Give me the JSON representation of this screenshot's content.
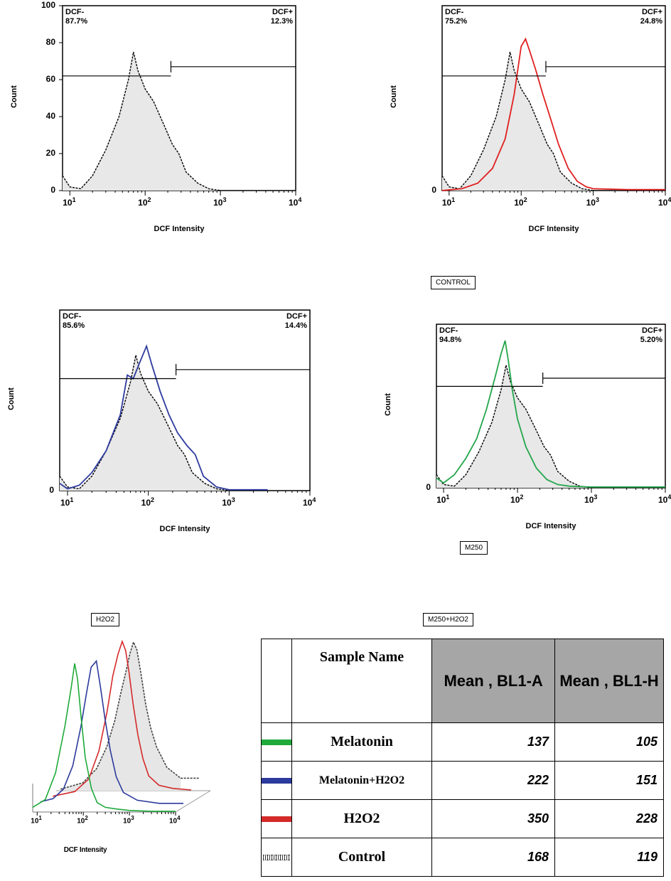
{
  "panels": [
    {
      "id": "control",
      "ylabel": "Count",
      "xlabel": "DCF Intensity",
      "ytick_labels": [
        "100",
        "80",
        "60",
        "40",
        "20",
        "0"
      ],
      "xtick_labels": [
        "10^1",
        "10^2",
        "10^3",
        "10^4"
      ],
      "gate_left_name": "DCF-",
      "gate_left_pct": "87.7%",
      "gate_right_name": "DCF+",
      "gate_right_pct": "12.3%",
      "caption": "CONTROL"
    },
    {
      "id": "h2o2",
      "ylabel": "Count",
      "xlabel": "DCF Intensity",
      "ytick_labels": [
        "0"
      ],
      "xtick_labels": [
        "10^1",
        "10^2",
        "10^3",
        "10^4"
      ],
      "gate_left_name": "DCF-",
      "gate_left_pct": "75.2%",
      "gate_right_name": "DCF+",
      "gate_right_pct": "24.8%",
      "caption": "H2O2"
    },
    {
      "id": "m250h2o2",
      "ylabel": "Count",
      "xlabel": "DCF Intensity",
      "ytick_labels": [
        "0"
      ],
      "xtick_labels": [
        "10^1",
        "10^2",
        "10^3",
        "10^4"
      ],
      "gate_left_name": "DCF-",
      "gate_left_pct": "85.6%",
      "gate_right_name": "DCF+",
      "gate_right_pct": "14.4%",
      "caption": "M250+H2O2"
    },
    {
      "id": "m250",
      "ylabel": "Count",
      "xlabel": "DCF Intensity",
      "ytick_labels": [
        "0"
      ],
      "xtick_labels": [
        "10^1",
        "10^2",
        "10^3",
        "10^4"
      ],
      "gate_left_name": "DCF-",
      "gate_left_pct": "94.8%",
      "gate_right_name": "DCF+",
      "gate_right_pct": "5.20%",
      "caption": "M250"
    }
  ],
  "overlay": {
    "xlabel": "DCF Intensity",
    "xtick_labels": [
      "10^1",
      "10^2",
      "10^3",
      "10^4"
    ]
  },
  "table": {
    "header_sample": "Sample Name",
    "header_mean_a": "Mean , BL1-A",
    "header_mean_h": "Mean , BL1-H",
    "rows": [
      {
        "name": "Melatonin",
        "mean_a": "137",
        "mean_h": "105",
        "color": "#1faa3a"
      },
      {
        "name": "Melatonin+H2O2",
        "mean_a": "222",
        "mean_h": "151",
        "color": "#2b3a9c"
      },
      {
        "name": "H2O2",
        "mean_a": "350",
        "mean_h": "228",
        "color": "#d42a2a"
      },
      {
        "name": "Control",
        "mean_a": "168",
        "mean_h": "119",
        "color": "#444444"
      }
    ]
  },
  "chart_data": [
    {
      "type": "area",
      "x_scale": "log",
      "xlim": [
        10,
        10000
      ],
      "ylim": [
        0,
        100
      ],
      "gate": {
        "left_pct": 87.7,
        "right_pct": 12.3,
        "boundary": 220
      },
      "series": [
        {
          "name": "",
          "color": "#000000",
          "fill": "#e8e8e8",
          "x": [
            8,
            10,
            14,
            20,
            30,
            45,
            60,
            70,
            80,
            100,
            130,
            180,
            230,
            280,
            350,
            500,
            700,
            1000
          ],
          "y": [
            8,
            2,
            1,
            8,
            22,
            40,
            60,
            75,
            65,
            55,
            48,
            35,
            25,
            20,
            10,
            4,
            1,
            0
          ]
        }
      ]
    },
    {
      "type": "area",
      "x_scale": "log",
      "xlim": [
        10,
        10000
      ],
      "ylim": [
        0,
        100
      ],
      "gate": {
        "left_pct": 75.2,
        "right_pct": 24.8,
        "boundary": 220
      },
      "series": [
        {
          "name": "",
          "color": "#000000",
          "fill": "#e8e8e8",
          "x": [
            8,
            10,
            14,
            20,
            30,
            45,
            60,
            70,
            80,
            100,
            130,
            180,
            230,
            280,
            350,
            500,
            700,
            1000
          ],
          "y": [
            8,
            2,
            1,
            8,
            22,
            40,
            60,
            75,
            65,
            55,
            48,
            35,
            25,
            20,
            10,
            4,
            1,
            0
          ]
        },
        {
          "name": "",
          "color": "#e02020",
          "fill": "none",
          "x": [
            8,
            15,
            25,
            40,
            60,
            80,
            100,
            115,
            130,
            160,
            200,
            260,
            330,
            450,
            600,
            800,
            1000,
            3000,
            10000
          ],
          "y": [
            0,
            1,
            4,
            12,
            28,
            52,
            78,
            82,
            76,
            65,
            52,
            38,
            25,
            12,
            5,
            2,
            1,
            0.5,
            0.5
          ]
        }
      ]
    },
    {
      "type": "area",
      "x_scale": "log",
      "xlim": [
        10,
        10000
      ],
      "ylim": [
        0,
        100
      ],
      "gate": {
        "left_pct": 85.6,
        "right_pct": 14.4,
        "boundary": 220
      },
      "series": [
        {
          "name": "",
          "color": "#000000",
          "fill": "#e8e8e8",
          "x": [
            8,
            10,
            14,
            20,
            30,
            45,
            60,
            70,
            80,
            100,
            130,
            180,
            230,
            280,
            350,
            500,
            700,
            1000
          ],
          "y": [
            8,
            2,
            1,
            8,
            22,
            40,
            60,
            75,
            65,
            55,
            48,
            35,
            25,
            20,
            10,
            4,
            1,
            0
          ]
        },
        {
          "name": "",
          "color": "#2d3a9e",
          "fill": "none",
          "x": [
            8,
            10,
            14,
            20,
            30,
            45,
            55,
            65,
            80,
            95,
            110,
            140,
            180,
            230,
            300,
            380,
            480,
            700,
            1000,
            3000
          ],
          "y": [
            4,
            1,
            3,
            10,
            22,
            42,
            64,
            62,
            72,
            80,
            70,
            55,
            42,
            32,
            25,
            20,
            8,
            2,
            0.5,
            0.5
          ]
        }
      ]
    },
    {
      "type": "area",
      "x_scale": "log",
      "xlim": [
        10,
        10000
      ],
      "ylim": [
        0,
        100
      ],
      "gate": {
        "left_pct": 94.8,
        "right_pct": 5.2,
        "boundary": 220
      },
      "series": [
        {
          "name": "",
          "color": "#000000",
          "fill": "#e8e8e8",
          "x": [
            8,
            10,
            14,
            20,
            30,
            45,
            60,
            70,
            80,
            100,
            130,
            180,
            230,
            280,
            350,
            500,
            700,
            1000
          ],
          "y": [
            8,
            2,
            1,
            8,
            22,
            40,
            60,
            75,
            65,
            55,
            48,
            35,
            25,
            20,
            10,
            4,
            1,
            0
          ]
        },
        {
          "name": "",
          "color": "#23a64a",
          "fill": "none",
          "x": [
            8,
            10,
            14,
            20,
            28,
            38,
            50,
            60,
            68,
            75,
            85,
            100,
            130,
            180,
            250,
            350,
            500,
            1000,
            10000
          ],
          "y": [
            6,
            3,
            8,
            18,
            30,
            48,
            68,
            82,
            90,
            78,
            60,
            42,
            25,
            12,
            5,
            2,
            1,
            0.5,
            0.5
          ]
        }
      ]
    },
    {
      "type": "line",
      "x_scale": "log",
      "xlim": [
        10,
        10000
      ],
      "series": [
        {
          "name": "Melatonin",
          "color": "#1faa3a",
          "x": [
            8,
            15,
            25,
            40,
            55,
            65,
            75,
            90,
            110,
            150,
            200,
            300,
            500,
            1000,
            3000
          ],
          "y": [
            3,
            8,
            25,
            55,
            80,
            95,
            85,
            60,
            35,
            15,
            6,
            3,
            2,
            1,
            0.5
          ]
        },
        {
          "name": "Melatonin+H2O2",
          "color": "#2b3a9c",
          "x": [
            8,
            15,
            25,
            40,
            60,
            80,
            100,
            130,
            160,
            200,
            260,
            350,
            500,
            1000,
            3000
          ],
          "y": [
            2,
            4,
            10,
            25,
            50,
            72,
            88,
            92,
            75,
            55,
            35,
            18,
            8,
            3,
            1
          ]
        },
        {
          "name": "H2O2",
          "color": "#d42a2a",
          "x": [
            10,
            30,
            60,
            100,
            150,
            200,
            260,
            320,
            380,
            450,
            550,
            700,
            900,
            1200,
            2000,
            4000,
            10000
          ],
          "y": [
            1,
            4,
            12,
            30,
            55,
            78,
            92,
            100,
            94,
            80,
            60,
            40,
            25,
            14,
            8,
            6,
            5
          ]
        },
        {
          "name": "Control",
          "color": "#444444",
          "x": [
            10,
            30,
            60,
            100,
            150,
            200,
            260,
            320,
            380,
            450,
            550,
            700,
            900,
            1200,
            2000,
            4000
          ],
          "y": [
            1,
            5,
            14,
            28,
            45,
            62,
            76,
            88,
            95,
            90,
            75,
            55,
            40,
            28,
            15,
            8
          ]
        }
      ]
    }
  ]
}
